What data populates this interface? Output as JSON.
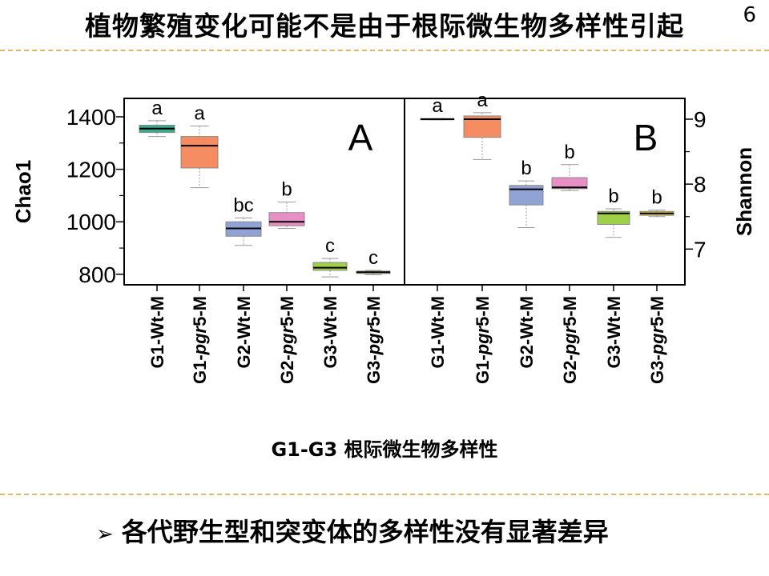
{
  "header": {
    "title": "植物繁殖变化可能不是由于根际微生物多样性引起",
    "page_number": "6"
  },
  "chart_data": [
    {
      "type": "box",
      "panel_label": "A",
      "ylabel": "Chao1",
      "y_axis_side": "left",
      "ylim": [
        760,
        1470
      ],
      "yticks": [
        "800",
        "1000",
        "1200",
        "1400"
      ],
      "categories": [
        {
          "prefix": "G1-",
          "italic": "",
          "suffix": "Wt-M"
        },
        {
          "prefix": "G1-",
          "italic": "pgr",
          "suffix": "5-M"
        },
        {
          "prefix": "G2-",
          "italic": "",
          "suffix": "Wt-M"
        },
        {
          "prefix": "G2-",
          "italic": "pgr",
          "suffix": "5-M"
        },
        {
          "prefix": "G3-",
          "italic": "",
          "suffix": "Wt-M"
        },
        {
          "prefix": "G3-",
          "italic": "pgr",
          "suffix": "5-M"
        }
      ],
      "boxes": [
        {
          "min": 1325,
          "q1": 1340,
          "median": 1355,
          "q3": 1368,
          "max": 1385,
          "color": "#3aaa8c",
          "letter": "a"
        },
        {
          "min": 1130,
          "q1": 1205,
          "median": 1290,
          "q3": 1325,
          "max": 1365,
          "color": "#f58c62",
          "letter": "a"
        },
        {
          "min": 910,
          "q1": 945,
          "median": 975,
          "q3": 1000,
          "max": 1015,
          "color": "#8fa4d4",
          "letter": "bc"
        },
        {
          "min": 975,
          "q1": 985,
          "median": 1000,
          "q3": 1035,
          "max": 1075,
          "color": "#e88fc6",
          "letter": "b"
        },
        {
          "min": 790,
          "q1": 815,
          "median": 825,
          "q3": 845,
          "max": 860,
          "color": "#9ed04a",
          "letter": "c"
        },
        {
          "min": 798,
          "q1": 803,
          "median": 808,
          "q3": 812,
          "max": 815,
          "color": "#e0c44a",
          "letter": "c"
        }
      ]
    },
    {
      "type": "box",
      "panel_label": "B",
      "ylabel": "Shannon",
      "y_axis_side": "right",
      "ylim": [
        6.45,
        9.32
      ],
      "yticks": [
        "7",
        "8",
        "9"
      ],
      "categories": [
        {
          "prefix": "G1-",
          "italic": "",
          "suffix": "Wt-M"
        },
        {
          "prefix": "G1-",
          "italic": "pgr",
          "suffix": "5-M"
        },
        {
          "prefix": "G2-",
          "italic": "",
          "suffix": "Wt-M"
        },
        {
          "prefix": "G2-",
          "italic": "pgr",
          "suffix": "5-M"
        },
        {
          "prefix": "G3-",
          "italic": "",
          "suffix": "Wt-M"
        },
        {
          "prefix": "G3-",
          "italic": "pgr",
          "suffix": "5-M"
        }
      ],
      "boxes": [
        {
          "min": 8.99,
          "q1": 8.99,
          "median": 9.0,
          "q3": 9.01,
          "max": 9.01,
          "color": "#3aaa8c",
          "letter": "a"
        },
        {
          "min": 8.38,
          "q1": 8.72,
          "median": 9.0,
          "q3": 9.05,
          "max": 9.1,
          "color": "#f58c62",
          "letter": "a"
        },
        {
          "min": 7.33,
          "q1": 7.68,
          "median": 7.92,
          "q3": 7.98,
          "max": 8.05,
          "color": "#8fa4d4",
          "letter": "b"
        },
        {
          "min": 7.9,
          "q1": 7.93,
          "median": 7.95,
          "q3": 8.1,
          "max": 8.3,
          "color": "#e88fc6",
          "letter": "b"
        },
        {
          "min": 7.18,
          "q1": 7.38,
          "median": 7.55,
          "q3": 7.58,
          "max": 7.62,
          "color": "#9ed04a",
          "letter": "b"
        },
        {
          "min": 7.5,
          "q1": 7.52,
          "median": 7.55,
          "q3": 7.58,
          "max": 7.6,
          "color": "#e0c44a",
          "letter": "b"
        }
      ]
    }
  ],
  "x_caption": "G1-G3 根际微生物多样性",
  "conclusion": {
    "text": "各代野生型和突变体的多样性没有显著差异"
  }
}
